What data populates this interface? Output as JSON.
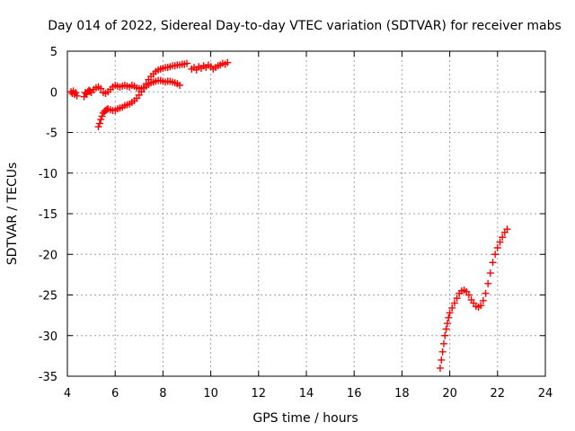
{
  "chart_data": {
    "type": "scatter",
    "title": "Day 014 of 2022, Sidereal Day-to-day VTEC variation (SDTVAR) for receiver mabs",
    "xlabel": "GPS time / hours",
    "ylabel": "SDTVAR / TECUs",
    "xlim": [
      4,
      24
    ],
    "ylim": [
      -35,
      5
    ],
    "xticks": [
      "4",
      "6",
      "8",
      "10",
      "12",
      "14",
      "16",
      "18",
      "20",
      "22",
      "24"
    ],
    "yticks": [
      "5",
      "0",
      "-5",
      "-10",
      "-15",
      "-20",
      "-25",
      "-30",
      "-35"
    ],
    "grid": true,
    "marker": "plus",
    "color": "#ff0000",
    "series": [
      {
        "name": "SDTVAR",
        "segments": [
          {
            "x": [
              4.15,
              4.2,
              4.25,
              4.3,
              4.35,
              4.4
            ],
            "y": [
              0.0,
              -0.2,
              0.1,
              -0.3,
              -0.1,
              -0.5
            ]
          },
          {
            "x": [
              4.7,
              4.75,
              4.8,
              4.85,
              4.9,
              4.95,
              5.0
            ],
            "y": [
              -0.6,
              -0.1,
              -0.3,
              0.0,
              0.2,
              0.1,
              -0.1
            ]
          },
          {
            "x": [
              5.1,
              5.2,
              5.3,
              5.4,
              5.5,
              5.6,
              5.7,
              5.8,
              5.9,
              6.0,
              6.1,
              6.2,
              6.3,
              6.4,
              6.5,
              6.6,
              6.7,
              6.8,
              6.9,
              7.0,
              7.1,
              7.2,
              7.3,
              7.4,
              7.5,
              7.6,
              7.7,
              7.8,
              7.9,
              8.0,
              8.1,
              8.2,
              8.3,
              8.4,
              8.5,
              8.6,
              8.7
            ],
            "y": [
              0.3,
              0.5,
              0.6,
              0.4,
              -0.1,
              -0.2,
              0.0,
              0.3,
              0.6,
              0.8,
              0.7,
              0.6,
              0.7,
              0.8,
              0.7,
              0.6,
              0.8,
              0.7,
              0.5,
              0.4,
              0.4,
              0.5,
              0.7,
              0.9,
              1.1,
              1.2,
              1.3,
              1.4,
              1.4,
              1.3,
              1.2,
              1.3,
              1.3,
              1.2,
              1.1,
              1.0,
              0.8
            ]
          },
          {
            "x": [
              5.3,
              5.35,
              5.4,
              5.45,
              5.5,
              5.55,
              5.6,
              5.65,
              5.7,
              5.8,
              5.9,
              6.0,
              6.1,
              6.2,
              6.3,
              6.4,
              6.5,
              6.6,
              6.7,
              6.8,
              6.9,
              7.0,
              7.1,
              7.2,
              7.3,
              7.4,
              7.5,
              7.6,
              7.7,
              7.8,
              7.9,
              8.0,
              8.1,
              8.2,
              8.3,
              8.4,
              8.5,
              8.6,
              8.7,
              8.8,
              8.9,
              9.0
            ],
            "y": [
              -4.3,
              -3.9,
              -3.4,
              -3.0,
              -2.6,
              -2.4,
              -2.3,
              -2.2,
              -2.1,
              -2.2,
              -2.3,
              -2.3,
              -2.1,
              -2.0,
              -1.9,
              -1.7,
              -1.6,
              -1.5,
              -1.3,
              -1.1,
              -0.8,
              -0.4,
              0.0,
              0.5,
              1.0,
              1.5,
              1.9,
              2.2,
              2.5,
              2.7,
              2.8,
              2.9,
              3.0,
              3.0,
              3.1,
              3.2,
              3.2,
              3.3,
              3.3,
              3.4,
              3.4,
              3.5
            ]
          },
          {
            "x": [
              9.2,
              9.3,
              9.4,
              9.5,
              9.6,
              9.7,
              9.8,
              9.9,
              10.0,
              10.1,
              10.2,
              10.3,
              10.4,
              10.5,
              10.6,
              10.7
            ],
            "y": [
              2.8,
              3.0,
              2.7,
              3.1,
              2.9,
              3.2,
              3.0,
              3.3,
              3.1,
              2.8,
              3.0,
              3.2,
              3.3,
              3.5,
              3.4,
              3.6
            ]
          },
          {
            "x": [
              19.6,
              19.65,
              19.7,
              19.75,
              19.8,
              19.85,
              19.9,
              19.95,
              20.0,
              20.1,
              20.2,
              20.3,
              20.4,
              20.5,
              20.6,
              20.7,
              20.8,
              20.9,
              21.0,
              21.1,
              21.2,
              21.3,
              21.4,
              21.5,
              21.6,
              21.7,
              21.8,
              21.9,
              22.0,
              22.1,
              22.2,
              22.3,
              22.4
            ],
            "y": [
              -34.0,
              -33.0,
              -32.0,
              -31.0,
              -30.0,
              -29.2,
              -28.5,
              -27.8,
              -27.2,
              -26.6,
              -26.0,
              -25.4,
              -24.8,
              -24.5,
              -24.4,
              -24.6,
              -25.0,
              -25.6,
              -26.0,
              -26.4,
              -26.5,
              -26.3,
              -25.7,
              -24.8,
              -23.6,
              -22.3,
              -21.0,
              -20.0,
              -19.2,
              -18.5,
              -17.9,
              -17.3,
              -16.9
            ]
          }
        ]
      }
    ]
  }
}
